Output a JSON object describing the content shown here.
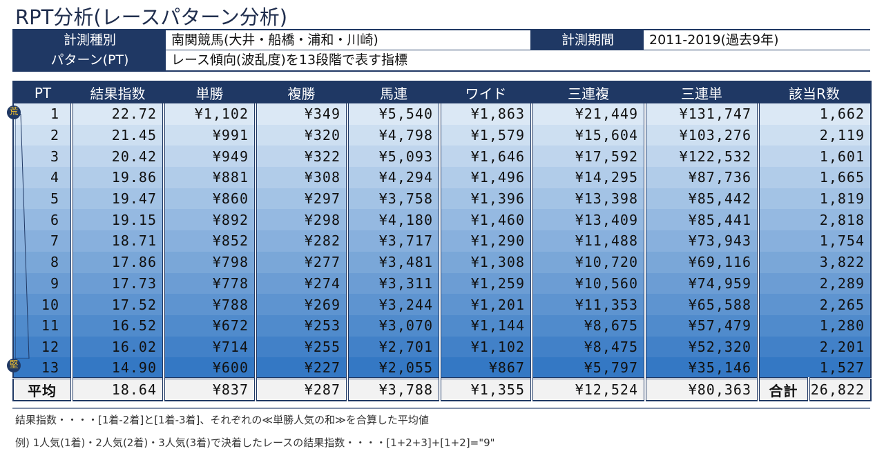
{
  "title": "RPT分析(レースパターン分析)",
  "info": {
    "type_label": "計測種別",
    "type_value": "南関競馬(大井・船橋・浦和・川崎)",
    "period_label": "計測期間",
    "period_value": "2011-2019(過去9年)",
    "pattern_label": "パターン(PT)",
    "pattern_value": "レース傾向(波乱度)を13段階で表す指標"
  },
  "table": {
    "headers": [
      "PT",
      "結果指数",
      "単勝",
      "複勝",
      "馬連",
      "ワイド",
      "三連複",
      "三連単",
      "該当R数"
    ],
    "badge_top": "荒",
    "badge_bottom": "堅",
    "rows": [
      [
        "1",
        "22.72",
        "¥1,102",
        "¥349",
        "¥5,540",
        "¥1,863",
        "¥21,449",
        "¥131,747",
        "1,662"
      ],
      [
        "2",
        "21.45",
        "¥991",
        "¥320",
        "¥4,798",
        "¥1,579",
        "¥15,604",
        "¥103,276",
        "2,119"
      ],
      [
        "3",
        "20.42",
        "¥949",
        "¥322",
        "¥5,093",
        "¥1,646",
        "¥17,592",
        "¥122,532",
        "1,601"
      ],
      [
        "4",
        "19.86",
        "¥881",
        "¥308",
        "¥4,294",
        "¥1,496",
        "¥14,295",
        "¥87,736",
        "1,665"
      ],
      [
        "5",
        "19.47",
        "¥860",
        "¥297",
        "¥3,758",
        "¥1,396",
        "¥13,398",
        "¥85,442",
        "1,819"
      ],
      [
        "6",
        "19.15",
        "¥892",
        "¥298",
        "¥4,180",
        "¥1,460",
        "¥13,409",
        "¥85,441",
        "2,818"
      ],
      [
        "7",
        "18.71",
        "¥852",
        "¥282",
        "¥3,717",
        "¥1,290",
        "¥11,488",
        "¥73,943",
        "1,754"
      ],
      [
        "8",
        "17.86",
        "¥798",
        "¥277",
        "¥3,481",
        "¥1,308",
        "¥10,720",
        "¥69,116",
        "3,822"
      ],
      [
        "9",
        "17.73",
        "¥778",
        "¥274",
        "¥3,311",
        "¥1,259",
        "¥10,560",
        "¥74,959",
        "2,289"
      ],
      [
        "10",
        "17.52",
        "¥788",
        "¥269",
        "¥3,244",
        "¥1,201",
        "¥11,353",
        "¥65,588",
        "2,265"
      ],
      [
        "11",
        "16.52",
        "¥672",
        "¥253",
        "¥3,070",
        "¥1,144",
        "¥8,675",
        "¥57,479",
        "1,280"
      ],
      [
        "12",
        "16.02",
        "¥714",
        "¥255",
        "¥2,701",
        "¥1,102",
        "¥8,475",
        "¥52,320",
        "2,201"
      ],
      [
        "13",
        "14.90",
        "¥600",
        "¥227",
        "¥2,055",
        "¥867",
        "¥5,797",
        "¥35,146",
        "1,527"
      ]
    ],
    "average": {
      "label": "平均",
      "values": [
        "18.64",
        "¥837",
        "¥287",
        "¥3,788",
        "¥1,355",
        "¥12,524",
        "¥80,363"
      ],
      "total_label": "合計",
      "total_value": "26,822"
    }
  },
  "notes": [
    "結果指数・・・・[1着-2着]と[1着-3着]、それぞれの≪単勝人気の和≫を合算した平均値",
    "例) 1人気(1着)・2人気(2着)・3人気(3着)で決着したレースの結果指数・・・・[1+2+3]+[1+2]=\"9\""
  ]
}
